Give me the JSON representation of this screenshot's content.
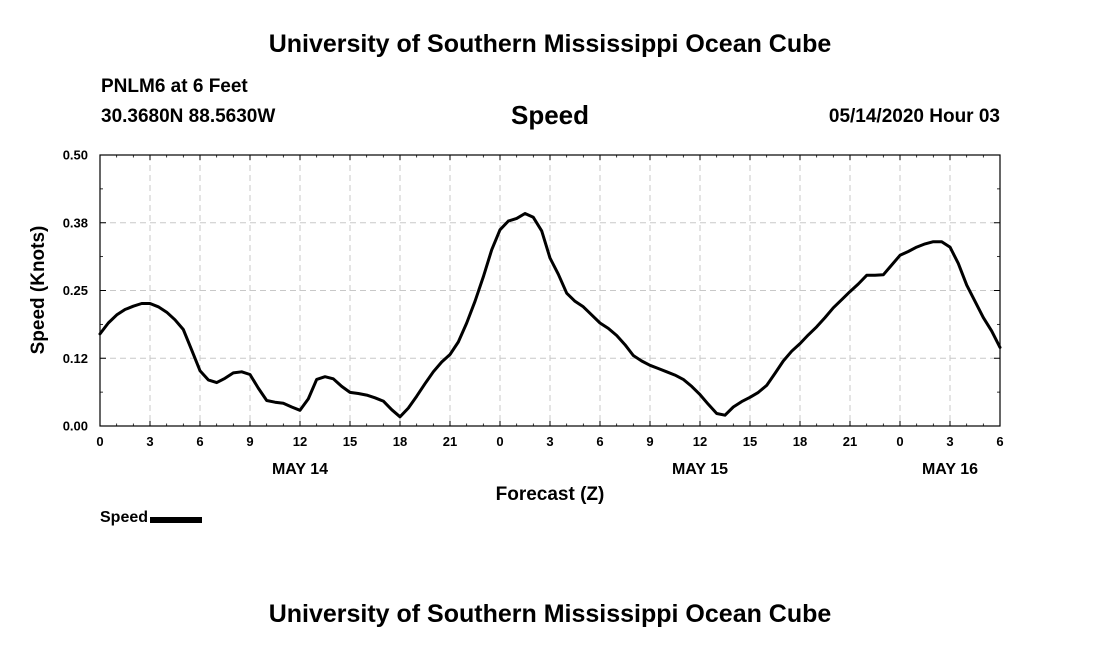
{
  "header": {
    "title": "University of Southern Mississippi Ocean Cube",
    "station": "PNLM6 at 6 Feet",
    "coords": "30.3680N 88.5630W",
    "plot_title": "Speed",
    "datetime": "05/14/2020 Hour 03"
  },
  "footer": {
    "title": "University of Southern Mississippi Ocean Cube"
  },
  "legend": {
    "label": "Speed",
    "color": "#000000"
  },
  "chart_data": {
    "type": "line",
    "title": "Speed",
    "xlabel": "Forecast (Z)",
    "ylabel": "Speed (Knots)",
    "xlim": [
      0,
      54
    ],
    "ylim": [
      0,
      0.5
    ],
    "yticks": [
      "0.00",
      "0.12",
      "0.25",
      "0.38",
      "0.50"
    ],
    "xticks": [
      "0",
      "3",
      "6",
      "9",
      "12",
      "15",
      "18",
      "21",
      "0",
      "3",
      "6",
      "9",
      "12",
      "15",
      "18",
      "21",
      "0",
      "3",
      "6"
    ],
    "day_labels": [
      {
        "x": 12,
        "label": "MAY 14"
      },
      {
        "x": 36,
        "label": "MAY 15"
      },
      {
        "x": 51,
        "label": "MAY 16"
      }
    ],
    "grid": true,
    "legend_position": "bottom-left",
    "series": [
      {
        "name": "Speed",
        "x": [
          0,
          0.5,
          1,
          1.5,
          2,
          2.5,
          3,
          3.5,
          4,
          4.5,
          5,
          5.5,
          6,
          6.5,
          7,
          7.5,
          8,
          8.5,
          9,
          9.5,
          10,
          10.5,
          11,
          11.5,
          12,
          12.5,
          13,
          13.5,
          14,
          14.5,
          15,
          15.5,
          16,
          16.5,
          17,
          17.5,
          18,
          18.5,
          19,
          19.5,
          20,
          20.5,
          21,
          21.5,
          22,
          22.5,
          23,
          23.5,
          24,
          24.5,
          25,
          25.5,
          26,
          26.5,
          27,
          27.5,
          28,
          28.5,
          29,
          29.5,
          30,
          30.5,
          31,
          31.5,
          32,
          32.5,
          33,
          33.5,
          34,
          34.5,
          35,
          35.5,
          36,
          36.5,
          37,
          37.5,
          38,
          38.5,
          39,
          39.5,
          40,
          40.5,
          41,
          41.5,
          42,
          42.5,
          43,
          43.5,
          44,
          44.5,
          45,
          45.5,
          46,
          46.5,
          47,
          47.5,
          48,
          48.5,
          49,
          49.5,
          50,
          50.5,
          51,
          51.5,
          52,
          52.5,
          53,
          53.5,
          54
        ],
        "values": [
          0.17,
          0.19,
          0.205,
          0.215,
          0.221,
          0.226,
          0.226,
          0.22,
          0.21,
          0.196,
          0.178,
          0.14,
          0.102,
          0.085,
          0.08,
          0.088,
          0.098,
          0.1,
          0.095,
          0.07,
          0.047,
          0.044,
          0.042,
          0.035,
          0.029,
          0.05,
          0.086,
          0.091,
          0.087,
          0.073,
          0.062,
          0.06,
          0.057,
          0.052,
          0.046,
          0.03,
          0.017,
          0.033,
          0.055,
          0.078,
          0.1,
          0.118,
          0.132,
          0.155,
          0.19,
          0.23,
          0.275,
          0.325,
          0.362,
          0.378,
          0.383,
          0.392,
          0.385,
          0.36,
          0.31,
          0.28,
          0.245,
          0.23,
          0.22,
          0.205,
          0.19,
          0.18,
          0.167,
          0.15,
          0.13,
          0.12,
          0.112,
          0.106,
          0.1,
          0.094,
          0.086,
          0.073,
          0.058,
          0.04,
          0.023,
          0.02,
          0.035,
          0.045,
          0.053,
          0.062,
          0.075,
          0.097,
          0.12,
          0.138,
          0.152,
          0.168,
          0.183,
          0.2,
          0.218,
          0.233,
          0.248,
          0.262,
          0.278,
          0.278,
          0.279,
          0.297,
          0.315,
          0.322,
          0.33,
          0.336,
          0.34,
          0.34,
          0.33,
          0.3,
          0.26,
          0.23,
          0.2,
          0.175,
          0.145
        ]
      }
    ]
  }
}
